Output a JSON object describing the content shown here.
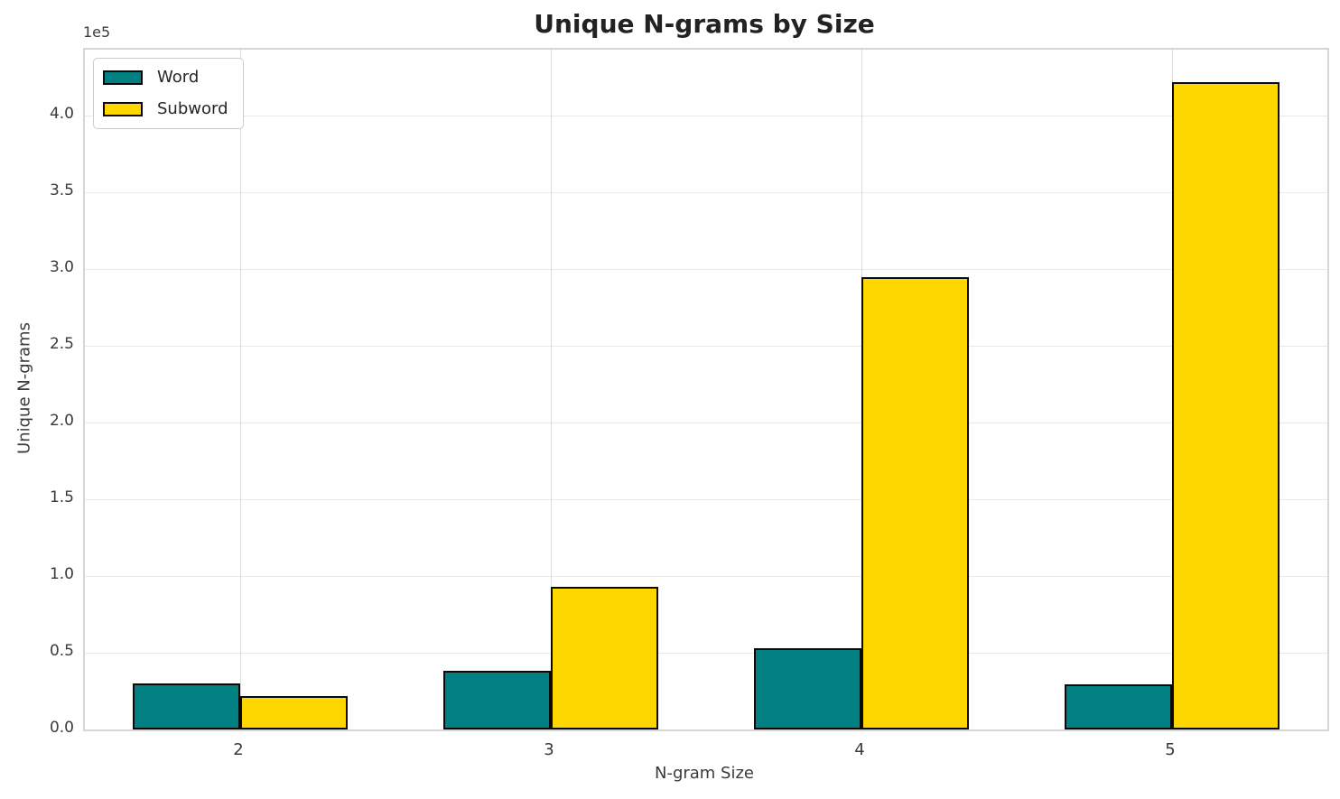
{
  "chart_data": {
    "type": "bar",
    "title": "Unique N-grams by Size",
    "xlabel": "N-gram Size",
    "ylabel": "Unique N-grams",
    "y_offset_label": "1e5",
    "categories": [
      "2",
      "3",
      "4",
      "5"
    ],
    "series": [
      {
        "name": "Word",
        "color": "#008080",
        "values": [
          30000,
          38500,
          53000,
          29500
        ]
      },
      {
        "name": "Subword",
        "color": "#FFD700",
        "values": [
          21500,
          93000,
          295000,
          422000
        ]
      }
    ],
    "bar_edge_color": "#0a0a0a",
    "ylim": [
      0,
      443000
    ],
    "yticks": [
      0,
      50000,
      100000,
      150000,
      200000,
      250000,
      300000,
      350000,
      400000
    ],
    "ytick_labels": [
      "0.0",
      "0.5",
      "1.0",
      "1.5",
      "2.0",
      "2.5",
      "3.0",
      "3.5",
      "4.0"
    ],
    "grid": true,
    "legend_position": "upper left"
  }
}
